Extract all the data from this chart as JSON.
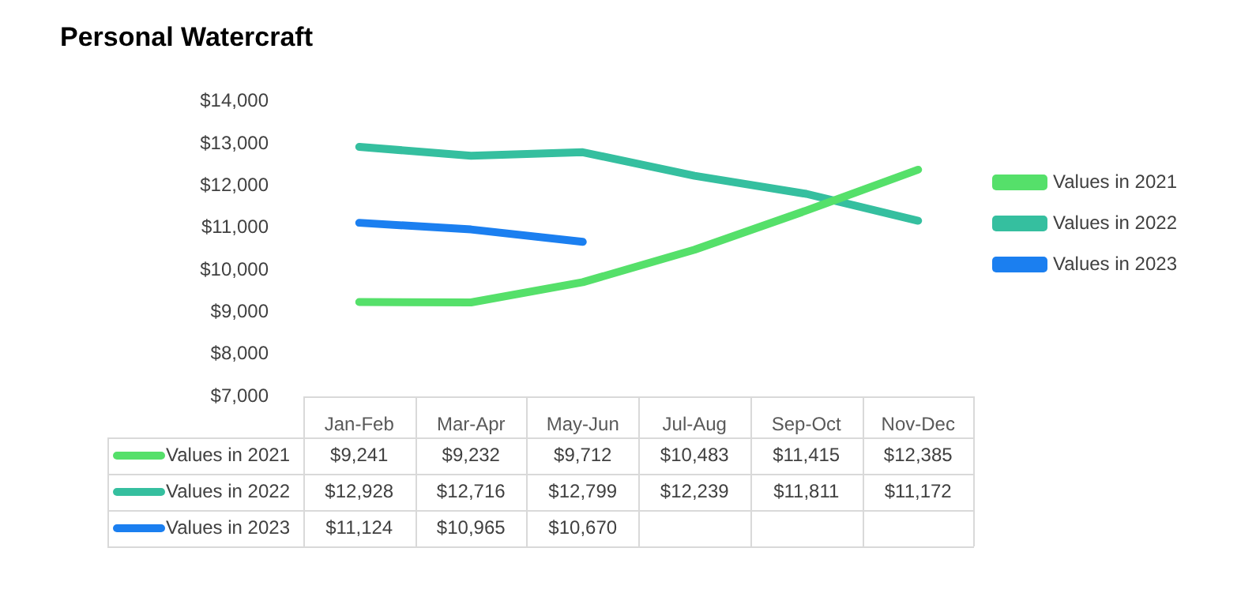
{
  "chart_data": {
    "type": "line",
    "title": "Personal Watercraft",
    "categories": [
      "Jan-Feb",
      "Mar-Apr",
      "May-Jun",
      "Jul-Aug",
      "Sep-Oct",
      "Nov-Dec"
    ],
    "series": [
      {
        "name": "Values in 2021",
        "color": "#55e06a",
        "values": [
          9241,
          9232,
          9712,
          10483,
          11415,
          12385
        ],
        "value_labels": [
          "$9,241",
          "$9,232",
          "$9,712",
          "$10,483",
          "$11,415",
          "$12,385"
        ]
      },
      {
        "name": "Values in 2022",
        "color": "#35bf9f",
        "values": [
          12928,
          12716,
          12799,
          12239,
          11811,
          11172
        ],
        "value_labels": [
          "$12,928",
          "$12,716",
          "$12,799",
          "$12,239",
          "$11,811",
          "$11,172"
        ]
      },
      {
        "name": "Values in 2023",
        "color": "#1b7ff0",
        "values": [
          11124,
          10965,
          10670,
          null,
          null,
          null
        ],
        "value_labels": [
          "$11,124",
          "$10,965",
          "$10,670",
          null,
          null,
          null
        ]
      }
    ],
    "ylim": [
      7000,
      14000
    ],
    "yticks": [
      {
        "value": 7000,
        "label": "$7,000"
      },
      {
        "value": 8000,
        "label": "$8,000"
      },
      {
        "value": 9000,
        "label": "$9,000"
      },
      {
        "value": 10000,
        "label": "$10,000"
      },
      {
        "value": 11000,
        "label": "$11,000"
      },
      {
        "value": 12000,
        "label": "$12,000"
      },
      {
        "value": 13000,
        "label": "$13,000"
      },
      {
        "value": 14000,
        "label": "$14,000"
      }
    ],
    "grid": false,
    "legend": "right",
    "marker": "none",
    "line_style": "solid",
    "data_labels": true
  }
}
